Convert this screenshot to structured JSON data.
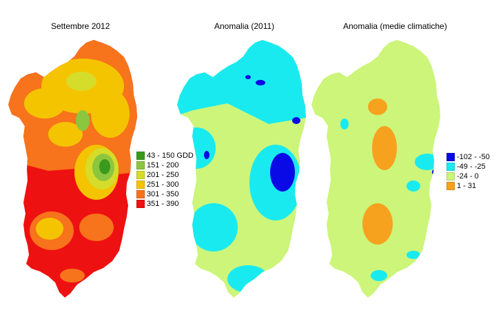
{
  "panels": [
    {
      "title": "Settembre 2012",
      "legend": [
        {
          "label": "43 - 150 GDD",
          "color": "#3a9a1e"
        },
        {
          "label": "151 - 200",
          "color": "#8cc63f"
        },
        {
          "label": "201 - 250",
          "color": "#d6dc2a"
        },
        {
          "label": "251 - 300",
          "color": "#f5c400"
        },
        {
          "label": "301 - 350",
          "color": "#f7731c"
        },
        {
          "label": "351 - 390",
          "color": "#ee1111"
        }
      ]
    },
    {
      "title": "Anomalia (2011)",
      "legend": []
    },
    {
      "title": "Anomalia (medie climatiche)",
      "legend": [
        {
          "label": "-102 - -50",
          "color": "#0a0ae6"
        },
        {
          "label": "-49 - -25",
          "color": "#19eaf0"
        },
        {
          "label": "-24 - 0",
          "color": "#ccf57a"
        },
        {
          "label": "1 - 31",
          "color": "#f7a21e"
        }
      ]
    }
  ]
}
